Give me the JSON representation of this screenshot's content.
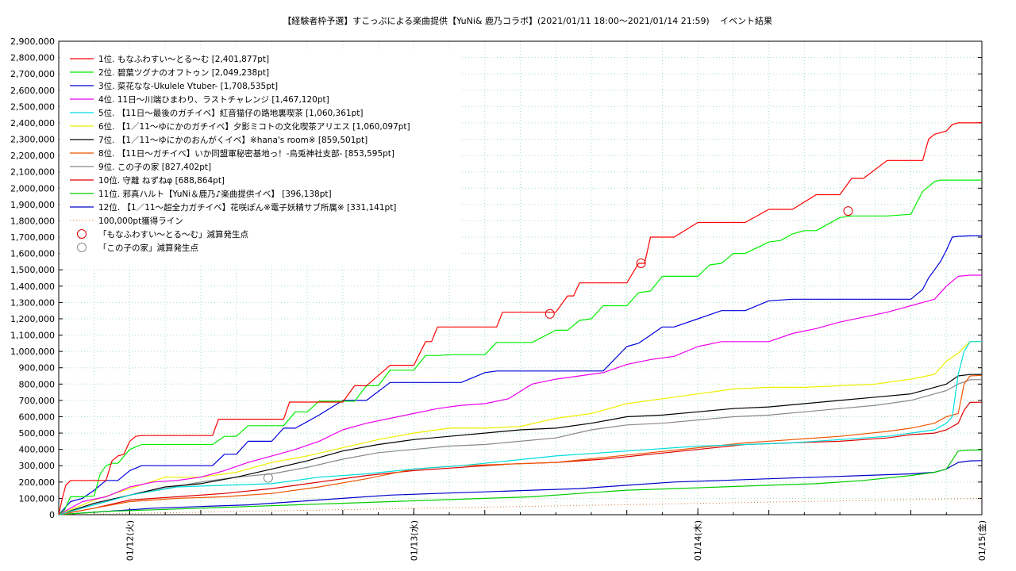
{
  "chart_data": {
    "type": "line",
    "title": "【経験者枠予選】すこっぷによる楽曲提供【YuNi& 鹿乃コラボ】(2021/01/11 18:00〜2021/01/14 21:59)",
    "subtitle": "イベント結果",
    "xlabel": "",
    "ylabel": "",
    "x_unit": "hours since 2021/01/11 18:00",
    "xlim": [
      0,
      78
    ],
    "ylim": [
      0,
      2900000
    ],
    "grid": true,
    "legend_position": "top-left",
    "x_ticks": [
      {
        "x": 6,
        "label": "01/12(火)"
      },
      {
        "x": 30,
        "label": "01/13(水)"
      },
      {
        "x": 54,
        "label": "01/14(木)"
      },
      {
        "x": 78,
        "label": "01/15(金)"
      }
    ],
    "y_ticks": [
      0,
      100000,
      200000,
      300000,
      400000,
      500000,
      600000,
      700000,
      800000,
      900000,
      1000000,
      1100000,
      1200000,
      1300000,
      1400000,
      1500000,
      1600000,
      1700000,
      1800000,
      1900000,
      2000000,
      2100000,
      2200000,
      2300000,
      2400000,
      2500000,
      2600000,
      2700000,
      2800000,
      2900000
    ],
    "y_tick_labels": [
      "0",
      "100,000",
      "200,000",
      "300,000",
      "400,000",
      "500,000",
      "600,000",
      "700,000",
      "800,000",
      "900,000",
      "1,000,000",
      "1,100,000",
      "1,200,000",
      "1,300,000",
      "1,400,000",
      "1,500,000",
      "1,600,000",
      "1,700,000",
      "1,800,000",
      "1,900,000",
      "2,000,000",
      "2,100,000",
      "2,200,000",
      "2,300,000",
      "2,400,000",
      "2,500,000",
      "2,600,000",
      "2,700,000",
      "2,800,000",
      "2,900,000"
    ],
    "series": [
      {
        "name": "1位. もなふわすい〜とる〜む [2,401,877pt]",
        "color": "#ff0000",
        "x": [
          0,
          0.3,
          0.6,
          1,
          2,
          3,
          4,
          4.5,
          5,
          5.5,
          6,
          6.5,
          7,
          10,
          12,
          13,
          13.5,
          14,
          16,
          18,
          19,
          19.5,
          20,
          22,
          24,
          25,
          25.5,
          26,
          28,
          30,
          31,
          31.5,
          32,
          34,
          36,
          37,
          37.5,
          38,
          40,
          42,
          43,
          43.5,
          44,
          46,
          48,
          49,
          49.5,
          50,
          52,
          54,
          55,
          55.5,
          56,
          58,
          60,
          61,
          61.5,
          62,
          64,
          66,
          67,
          67.5,
          68,
          70,
          72,
          73,
          73.5,
          74,
          75,
          75.5,
          76,
          76.5,
          77,
          77.5,
          78
        ],
        "y": [
          0,
          100000,
          180000,
          210000,
          210000,
          210000,
          210000,
          330000,
          360000,
          370000,
          450000,
          480000,
          485000,
          485000,
          485000,
          485000,
          585000,
          585000,
          585000,
          585000,
          585000,
          690000,
          690000,
          690000,
          690000,
          790000,
          790000,
          790000,
          915000,
          915000,
          1060000,
          1060000,
          1150000,
          1150000,
          1150000,
          1150000,
          1240000,
          1240000,
          1240000,
          1240000,
          1340000,
          1340000,
          1420000,
          1420000,
          1420000,
          1540000,
          1540000,
          1700000,
          1700000,
          1790000,
          1790000,
          1790000,
          1790000,
          1790000,
          1870000,
          1870000,
          1870000,
          1870000,
          1960000,
          1960000,
          2060000,
          2060000,
          2060000,
          2170000,
          2170000,
          2170000,
          2300000,
          2330000,
          2350000,
          2390000,
          2400000,
          2400000,
          2400000,
          2400000,
          2401877
        ]
      },
      {
        "name": "2位. 碧葉ツグナのオフトゥン [2,049,238pt]",
        "color": "#00ee00",
        "x": [
          0,
          0.5,
          1,
          2,
          3,
          3.5,
          4,
          4.5,
          5,
          6,
          7,
          8,
          10,
          12,
          13,
          14,
          15,
          16,
          18,
          19,
          20,
          21,
          22,
          24,
          25,
          26,
          27,
          28,
          30,
          31,
          32,
          33,
          34,
          36,
          37,
          38,
          39,
          40,
          42,
          43,
          44,
          45,
          46,
          48,
          49,
          50,
          51,
          52,
          54,
          55,
          56,
          57,
          58,
          60,
          61,
          62,
          63,
          64,
          66,
          67,
          68,
          69,
          70,
          72,
          73,
          74,
          74.5,
          75,
          76,
          76.5,
          77,
          78
        ],
        "y": [
          0,
          30000,
          110000,
          110000,
          115000,
          250000,
          300000,
          315000,
          315000,
          400000,
          430000,
          430000,
          430000,
          430000,
          430000,
          480000,
          480000,
          545000,
          545000,
          545000,
          630000,
          630000,
          695000,
          695000,
          695000,
          790000,
          790000,
          885000,
          885000,
          975000,
          975000,
          980000,
          980000,
          980000,
          1055000,
          1055000,
          1055000,
          1055000,
          1130000,
          1130000,
          1190000,
          1200000,
          1280000,
          1280000,
          1360000,
          1370000,
          1460000,
          1460000,
          1460000,
          1530000,
          1540000,
          1600000,
          1600000,
          1670000,
          1680000,
          1720000,
          1740000,
          1740000,
          1820000,
          1830000,
          1830000,
          1830000,
          1830000,
          1840000,
          1980000,
          2040000,
          2049238,
          2049238,
          2049238,
          2049238,
          2049238,
          2049238
        ]
      },
      {
        "name": "3位. 菜花なな-Ukulele Vtuber- [1,708,535pt]",
        "color": "#0000dd",
        "x": [
          0,
          1,
          2,
          3,
          4,
          5,
          6,
          7,
          9,
          10,
          12,
          13,
          14,
          15,
          16,
          18,
          19,
          20,
          22,
          24,
          26,
          28,
          30,
          32,
          34,
          36,
          37,
          38,
          40,
          42,
          44,
          46,
          48,
          49,
          50,
          51,
          52,
          54,
          56,
          58,
          60,
          62,
          64,
          66,
          68,
          70,
          72,
          73,
          73.5,
          74,
          74.5,
          75,
          75.5,
          76,
          77,
          78
        ],
        "y": [
          0,
          80000,
          100000,
          150000,
          210000,
          210000,
          270000,
          300000,
          300000,
          300000,
          300000,
          300000,
          370000,
          370000,
          450000,
          450000,
          530000,
          530000,
          610000,
          700000,
          700000,
          810000,
          810000,
          810000,
          810000,
          870000,
          880000,
          880000,
          880000,
          880000,
          880000,
          880000,
          1030000,
          1050000,
          1100000,
          1150000,
          1150000,
          1200000,
          1250000,
          1250000,
          1310000,
          1320000,
          1320000,
          1320000,
          1320000,
          1320000,
          1320000,
          1380000,
          1450000,
          1500000,
          1550000,
          1620000,
          1700000,
          1705000,
          1708000,
          1708535
        ]
      },
      {
        "name": "4位. 11日〜川端ひまわり、ラストチャレンジ [1,467,120pt]",
        "color": "#ee00ee",
        "x": [
          0,
          2,
          4,
          6,
          8,
          10,
          12,
          14,
          16,
          18,
          20,
          22,
          24,
          26,
          28,
          30,
          32,
          34,
          36,
          38,
          40,
          42,
          44,
          46,
          48,
          50,
          52,
          54,
          56,
          58,
          60,
          62,
          64,
          66,
          68,
          70,
          72,
          74,
          75,
          76,
          77,
          78
        ],
        "y": [
          0,
          80000,
          110000,
          170000,
          200000,
          210000,
          230000,
          270000,
          320000,
          360000,
          400000,
          450000,
          520000,
          560000,
          590000,
          620000,
          650000,
          670000,
          680000,
          710000,
          800000,
          830000,
          850000,
          870000,
          920000,
          950000,
          970000,
          1030000,
          1060000,
          1060000,
          1060000,
          1110000,
          1140000,
          1180000,
          1210000,
          1240000,
          1280000,
          1320000,
          1400000,
          1460000,
          1467000,
          1467120
        ]
      },
      {
        "name": "5位. 【11日〜最後のガチイベ】紅音猫仔の路地裏喫茶 [1,060,361pt]",
        "color": "#00dddd",
        "x": [
          0,
          3,
          6,
          10,
          14,
          18,
          22,
          26,
          30,
          34,
          38,
          42,
          46,
          50,
          54,
          58,
          62,
          66,
          70,
          72,
          74,
          75,
          75.5,
          76,
          76.5,
          77,
          78
        ],
        "y": [
          0,
          60000,
          120000,
          170000,
          180000,
          190000,
          230000,
          250000,
          280000,
          300000,
          330000,
          360000,
          380000,
          400000,
          420000,
          430000,
          440000,
          460000,
          480000,
          500000,
          520000,
          560000,
          600000,
          860000,
          1000000,
          1060000,
          1060361
        ]
      },
      {
        "name": "6位. 【1／11〜ゆにかのガチイベ】夕影ミコトの文化喫茶アリエス [1,060,097pt]",
        "color": "#eeee00",
        "x": [
          0,
          3,
          6,
          9,
          12,
          15,
          18,
          21,
          24,
          27,
          30,
          33,
          36,
          39,
          42,
          45,
          48,
          51,
          54,
          57,
          60,
          63,
          66,
          69,
          72,
          74,
          75,
          76,
          77,
          78
        ],
        "y": [
          0,
          90000,
          160000,
          230000,
          230000,
          260000,
          320000,
          360000,
          410000,
          460000,
          500000,
          530000,
          530000,
          540000,
          590000,
          620000,
          680000,
          710000,
          740000,
          770000,
          780000,
          780000,
          790000,
          800000,
          830000,
          860000,
          940000,
          990000,
          1060000,
          1060097
        ]
      },
      {
        "name": "7位. 【1／11〜ゆにかのおんがくイベ】※hana's room※ [859,501pt]",
        "color": "#000000",
        "x": [
          0,
          3,
          6,
          9,
          12,
          15,
          18,
          21,
          24,
          27,
          30,
          33,
          36,
          39,
          42,
          45,
          48,
          51,
          54,
          57,
          60,
          63,
          66,
          69,
          72,
          74,
          75,
          76,
          77,
          78
        ],
        "y": [
          0,
          70000,
          120000,
          170000,
          190000,
          230000,
          280000,
          330000,
          390000,
          430000,
          460000,
          480000,
          500000,
          520000,
          530000,
          560000,
          600000,
          610000,
          630000,
          650000,
          660000,
          680000,
          700000,
          720000,
          740000,
          780000,
          800000,
          850000,
          859000,
          859501
        ]
      },
      {
        "name": "8位. 【11日〜ガチイベ】いか同盟軍秘密基地っ！-烏兎神社支部- [853,595pt]",
        "color": "#ee5500",
        "x": [
          0,
          3,
          6,
          10,
          14,
          18,
          22,
          26,
          30,
          34,
          38,
          42,
          46,
          50,
          54,
          58,
          62,
          66,
          70,
          72,
          74,
          75,
          76,
          76.5,
          77,
          78
        ],
        "y": [
          0,
          40000,
          80000,
          100000,
          110000,
          130000,
          170000,
          220000,
          280000,
          300000,
          310000,
          320000,
          350000,
          380000,
          410000,
          440000,
          460000,
          480000,
          510000,
          530000,
          560000,
          600000,
          620000,
          800000,
          850000,
          853595
        ]
      },
      {
        "name": "9位. この子の家 [827,402pt]",
        "color": "#888888",
        "x": [
          0,
          3,
          6,
          9,
          12,
          15,
          18,
          21,
          24,
          27,
          30,
          33,
          36,
          39,
          42,
          45,
          48,
          51,
          54,
          57,
          60,
          63,
          66,
          69,
          72,
          74,
          75,
          76,
          77,
          78
        ],
        "y": [
          0,
          60000,
          120000,
          160000,
          200000,
          230000,
          250000,
          290000,
          340000,
          380000,
          400000,
          420000,
          430000,
          450000,
          470000,
          520000,
          550000,
          560000,
          580000,
          600000,
          610000,
          630000,
          650000,
          670000,
          700000,
          740000,
          760000,
          800000,
          827000,
          827402
        ]
      },
      {
        "name": "10位. 守離 ねずねφ [688,864pt]",
        "color": "#dd0000",
        "x": [
          0,
          3,
          6,
          10,
          14,
          18,
          22,
          26,
          30,
          34,
          38,
          42,
          46,
          50,
          54,
          58,
          62,
          66,
          70,
          72,
          74,
          75,
          76,
          76.5,
          77,
          78
        ],
        "y": [
          0,
          40000,
          90000,
          110000,
          130000,
          160000,
          200000,
          240000,
          270000,
          290000,
          310000,
          320000,
          340000,
          370000,
          400000,
          430000,
          440000,
          450000,
          470000,
          490000,
          500000,
          520000,
          560000,
          640000,
          688000,
          688864
        ]
      },
      {
        "name": "11位. 邪真ハルト【YuNi＆鹿乃♪楽曲提供イベ】 [396,138pt]",
        "color": "#00cc00",
        "x": [
          0,
          4,
          8,
          12,
          16,
          20,
          24,
          28,
          32,
          36,
          40,
          44,
          48,
          52,
          56,
          60,
          64,
          68,
          72,
          74,
          75,
          76,
          77,
          78
        ],
        "y": [
          0,
          20000,
          30000,
          40000,
          50000,
          60000,
          70000,
          80000,
          90000,
          100000,
          110000,
          130000,
          150000,
          160000,
          170000,
          180000,
          190000,
          210000,
          240000,
          260000,
          280000,
          390000,
          396000,
          396138
        ]
      },
      {
        "name": "12位. 【1／11〜超全力ガチイベ】花咲ぽん※電子妖精サブ所属※ [331,141pt]",
        "color": "#0000cc",
        "x": [
          0,
          4,
          8,
          12,
          16,
          20,
          24,
          28,
          32,
          36,
          40,
          44,
          48,
          52,
          56,
          60,
          64,
          68,
          72,
          74,
          75,
          76,
          77,
          78
        ],
        "y": [
          0,
          20000,
          40000,
          50000,
          60000,
          80000,
          100000,
          120000,
          130000,
          140000,
          150000,
          160000,
          180000,
          200000,
          210000,
          220000,
          230000,
          240000,
          250000,
          260000,
          280000,
          320000,
          330000,
          331141
        ]
      }
    ],
    "reference_line": {
      "name": "100,000pt獲得ライン",
      "color": "#d07030",
      "x": [
        0,
        78
      ],
      "y": [
        0,
        100000
      ]
    },
    "markers": [
      {
        "name": "「もなふわすい〜とる〜む」減算発生点",
        "color": "#dd0000",
        "points": [
          {
            "x": 41.5,
            "y": 1230000
          },
          {
            "x": 49.2,
            "y": 1540000
          },
          {
            "x": 66.7,
            "y": 1860000
          }
        ]
      },
      {
        "name": "「この子の家」減算発生点",
        "color": "#888888",
        "points": [
          {
            "x": 17.7,
            "y": 225000
          }
        ]
      }
    ]
  }
}
